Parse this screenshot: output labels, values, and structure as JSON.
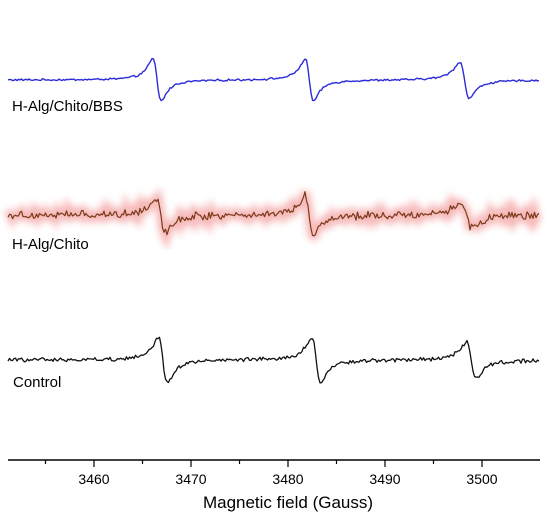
{
  "chart_data": {
    "type": "line",
    "xlabel": "Magnetic field (Gauss)",
    "xlim": [
      3452,
      3504
    ],
    "x_ticks": [
      "3460",
      "3470",
      "3480",
      "3490",
      "3500"
    ],
    "grid": false,
    "series": [
      {
        "name": "H-Alg/Chito/BBS",
        "color": "#2b2bd8",
        "noise": 0.8,
        "peaks": [
          {
            "x": 3466.5,
            "amp": 42.0,
            "w": 0.62
          },
          {
            "x": 3482.2,
            "amp": 42.0,
            "w": 0.62
          },
          {
            "x": 3498.2,
            "amp": 36.0,
            "w": 0.7
          }
        ]
      },
      {
        "name": "H-Alg/Chito",
        "color": "#7a3a1a",
        "glow": "#f08080",
        "noise": 3.2,
        "peaks": [
          {
            "x": 3466.9,
            "amp": 34.0,
            "w": 0.7
          },
          {
            "x": 3482.2,
            "amp": 39.0,
            "w": 0.65
          },
          {
            "x": 3498.4,
            "amp": 25.0,
            "w": 0.85
          }
        ]
      },
      {
        "name": "Control",
        "color": "#111111",
        "noise": 1.6,
        "peaks": [
          {
            "x": 3467.1,
            "amp": 46.0,
            "w": 0.65
          },
          {
            "x": 3482.9,
            "amp": 46.0,
            "w": 0.65
          },
          {
            "x": 3498.9,
            "amp": 36.0,
            "w": 0.7
          }
        ]
      }
    ]
  }
}
